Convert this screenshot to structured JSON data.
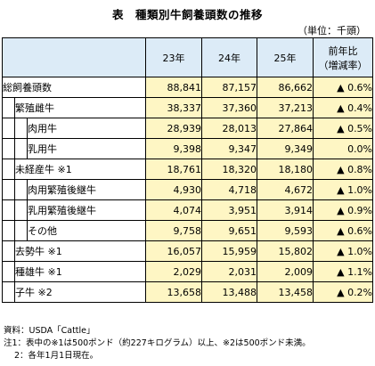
{
  "title": "表　種類別牛飼養頭数の推移",
  "unit": "（単位：千頭）",
  "headers": {
    "y23": "23年",
    "y24": "24年",
    "y25": "25年",
    "change_line1": "前年比",
    "change_line2": "（増減率）"
  },
  "rows": [
    {
      "label": "総飼養頭数",
      "v23": "88,841",
      "v24": "87,157",
      "v25": "86,662",
      "change": "▲ 0.6%"
    },
    {
      "label": "繁殖雌牛",
      "v23": "38,337",
      "v24": "37,360",
      "v25": "37,213",
      "change": "▲ 0.4%"
    },
    {
      "label": "肉用牛",
      "v23": "28,939",
      "v24": "28,013",
      "v25": "27,864",
      "change": "▲ 0.5%"
    },
    {
      "label": "乳用牛",
      "v23": "9,398",
      "v24": "9,347",
      "v25": "9,349",
      "change": "0.0%"
    },
    {
      "label": "未経産牛 ※1",
      "v23": "18,761",
      "v24": "18,320",
      "v25": "18,180",
      "change": "▲ 0.8%"
    },
    {
      "label": "肉用繁殖後継牛",
      "v23": "4,930",
      "v24": "4,718",
      "v25": "4,672",
      "change": "▲ 1.0%"
    },
    {
      "label": "乳用繁殖後継牛",
      "v23": "4,074",
      "v24": "3,951",
      "v25": "3,914",
      "change": "▲ 0.9%"
    },
    {
      "label": "その他",
      "v23": "9,758",
      "v24": "9,651",
      "v25": "9,593",
      "change": "▲ 0.6%"
    },
    {
      "label": "去勢牛 ※1",
      "v23": "16,057",
      "v24": "15,959",
      "v25": "15,802",
      "change": "▲ 1.0%"
    },
    {
      "label": "種雄牛 ※1",
      "v23": "2,029",
      "v24": "2,031",
      "v25": "2,009",
      "change": "▲ 1.1%"
    },
    {
      "label": "子牛 ※2",
      "v23": "13,658",
      "v24": "13,488",
      "v25": "13,458",
      "change": "▲ 0.2%"
    }
  ],
  "notes": {
    "source": "資料：USDA「Cattle」",
    "note1": "注1：表中の※1は500ポンド（約227キログラム）以上、※2は500ポンド未満。",
    "note2": "2：各年1月1日現在。"
  }
}
